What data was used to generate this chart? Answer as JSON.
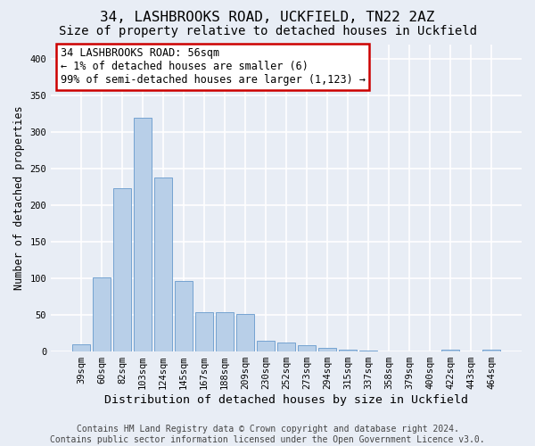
{
  "title1": "34, LASHBROOKS ROAD, UCKFIELD, TN22 2AZ",
  "title2": "Size of property relative to detached houses in Uckfield",
  "xlabel": "Distribution of detached houses by size in Uckfield",
  "ylabel": "Number of detached properties",
  "categories": [
    "39sqm",
    "60sqm",
    "82sqm",
    "103sqm",
    "124sqm",
    "145sqm",
    "167sqm",
    "188sqm",
    "209sqm",
    "230sqm",
    "252sqm",
    "273sqm",
    "294sqm",
    "315sqm",
    "337sqm",
    "358sqm",
    "379sqm",
    "400sqm",
    "422sqm",
    "443sqm",
    "464sqm"
  ],
  "values": [
    10,
    102,
    224,
    320,
    238,
    96,
    54,
    54,
    51,
    15,
    12,
    9,
    5,
    2,
    1,
    0,
    0,
    0,
    3,
    0,
    3
  ],
  "bar_color": "#b8cfe8",
  "bar_edge_color": "#6699cc",
  "annotation_text_line1": "34 LASHBROOKS ROAD: 56sqm",
  "annotation_text_line2": "← 1% of detached houses are smaller (6)",
  "annotation_text_line3": "99% of semi-detached houses are larger (1,123) →",
  "ann_box_color": "#ffffff",
  "ann_border_color": "#cc0000",
  "ylim": [
    0,
    420
  ],
  "yticks": [
    0,
    50,
    100,
    150,
    200,
    250,
    300,
    350,
    400
  ],
  "footer1": "Contains HM Land Registry data © Crown copyright and database right 2024.",
  "footer2": "Contains public sector information licensed under the Open Government Licence v3.0.",
  "bg_color": "#e8edf5",
  "plot_bg_color": "#e8edf5",
  "grid_color": "#ffffff",
  "title1_fontsize": 11.5,
  "title2_fontsize": 10,
  "xlabel_fontsize": 9.5,
  "ylabel_fontsize": 8.5,
  "tick_fontsize": 7.5,
  "ann_fontsize": 8.5,
  "footer_fontsize": 7
}
